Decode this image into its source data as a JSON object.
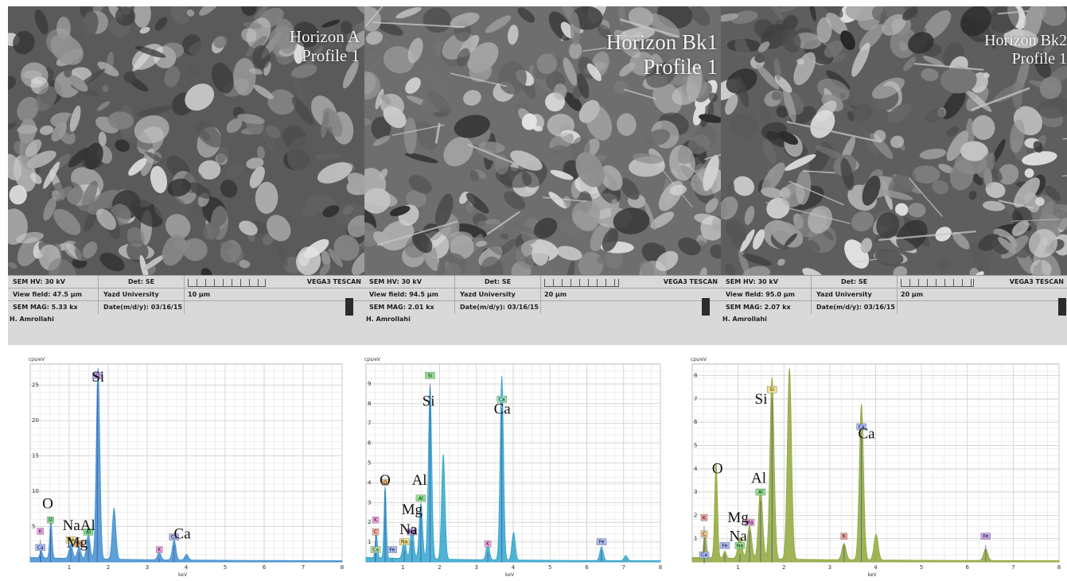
{
  "sem_images": [
    {
      "horizon": "Horizon A",
      "profile": "Profile 1",
      "hv": "SEM HV: 30 kV",
      "det": "Det: SE",
      "vendor": "VEGA3 TESCAN",
      "view_field": "View field: 47.5 µm",
      "institution": "Yazd University",
      "scale": "10 µm",
      "mag": "SEM MAG: 5.33 kx",
      "date": "Date(m/d/y): 03/16/15",
      "author": "H. Amrollahi"
    },
    {
      "horizon": "Horizon Bk1",
      "profile": "Profile 1",
      "hv": "SEM HV: 30 kV",
      "det": "Det: SE",
      "vendor": "VEGA3 TESCAN",
      "view_field": "View field: 94.5 µm",
      "institution": "Yazd University",
      "scale": "20 µm",
      "mag": "SEM MAG: 2.01 kx",
      "date": "Date(m/d/y): 03/16/15",
      "author": "H. Amrollahi"
    },
    {
      "horizon": "Horizon Bk2",
      "profile": "Profile 1",
      "hv": "SEM HV: 30 kV",
      "det": "Det: SE",
      "vendor": "VEGA3 TESCAN",
      "view_field": "View field: 95.0 µm",
      "institution": "Yazd University",
      "scale": "20 µm",
      "mag": "SEM MAG: 2.07 kx",
      "date": "Date(m/d/y): 03/16/15",
      "author": "H. Amrollahi"
    }
  ],
  "chart_data": [
    {
      "type": "area",
      "y_unit": "cps/eV",
      "x_unit": "keV",
      "xlim": [
        0,
        8
      ],
      "ylim": [
        0,
        28
      ],
      "x_ticks": [
        1,
        2,
        3,
        4,
        5,
        6,
        7,
        8
      ],
      "y_ticks": [
        5,
        10,
        15,
        20,
        25
      ],
      "color": "#3f8fd0",
      "peaks": [
        {
          "energy": 0.28,
          "height": 1.0
        },
        {
          "energy": 0.53,
          "height": 5.2
        },
        {
          "energy": 1.04,
          "height": 2.0
        },
        {
          "energy": 1.25,
          "height": 1.6
        },
        {
          "energy": 1.49,
          "height": 3.4
        },
        {
          "energy": 1.74,
          "height": 27.0
        },
        {
          "energy": 2.15,
          "height": 7.2
        },
        {
          "energy": 3.31,
          "height": 1.0
        },
        {
          "energy": 3.69,
          "height": 2.8
        },
        {
          "energy": 4.01,
          "height": 0.8
        }
      ],
      "element_labels": [
        {
          "text": "Si",
          "energy": 1.74,
          "level": 25.5
        },
        {
          "text": "O",
          "energy": 0.45,
          "level": 7.6
        },
        {
          "text": "NaAl",
          "energy": 1.25,
          "level": 4.5
        },
        {
          "text": "Mg",
          "energy": 1.2,
          "level": 2.1
        },
        {
          "text": "Ca",
          "energy": 3.9,
          "level": 3.3
        }
      ],
      "badges": [
        {
          "text": "Si",
          "energy": 1.72,
          "level": 26.0,
          "color": "#c9a2ee"
        },
        {
          "text": "O",
          "energy": 0.52,
          "level": 5.6,
          "color": "#7fe08d"
        },
        {
          "text": "K",
          "energy": 0.26,
          "level": 4.0,
          "color": "#f2a0e6"
        },
        {
          "text": "Ca",
          "energy": 0.26,
          "level": 1.7,
          "color": "#a9b9f2"
        },
        {
          "text": "Na",
          "energy": 1.04,
          "level": 2.8,
          "color": "#f4e38c"
        },
        {
          "text": "Al",
          "energy": 1.49,
          "level": 3.9,
          "color": "#7fe08d"
        },
        {
          "text": "Mg",
          "energy": 1.25,
          "level": 2.3,
          "color": "#f4c58c"
        },
        {
          "text": "K",
          "energy": 3.31,
          "level": 1.4,
          "color": "#f2a0e6"
        },
        {
          "text": "Ca",
          "energy": 3.69,
          "level": 3.2,
          "color": "#a9b9f2"
        }
      ]
    },
    {
      "type": "area",
      "y_unit": "cps/eV",
      "x_unit": "keV",
      "xlim": [
        0,
        8
      ],
      "ylim": [
        0,
        10
      ],
      "x_ticks": [
        1,
        2,
        3,
        4,
        5,
        6,
        7,
        8
      ],
      "y_ticks": [
        1,
        2,
        3,
        4,
        5,
        6,
        7,
        8,
        9
      ],
      "color": "#33a6cc",
      "peaks": [
        {
          "energy": 0.28,
          "height": 1.2
        },
        {
          "energy": 0.52,
          "height": 3.6
        },
        {
          "energy": 1.04,
          "height": 1.0
        },
        {
          "energy": 1.25,
          "height": 1.6
        },
        {
          "energy": 1.49,
          "height": 2.8
        },
        {
          "energy": 1.74,
          "height": 8.7
        },
        {
          "energy": 2.1,
          "height": 5.3
        },
        {
          "energy": 3.31,
          "height": 0.8
        },
        {
          "energy": 3.69,
          "height": 9.3
        },
        {
          "energy": 4.01,
          "height": 1.4
        },
        {
          "energy": 6.4,
          "height": 0.7
        },
        {
          "energy": 7.06,
          "height": 0.25
        }
      ],
      "element_labels": [
        {
          "text": "Si",
          "energy": 1.7,
          "level": 7.9
        },
        {
          "text": "Ca",
          "energy": 3.7,
          "level": 7.5
        },
        {
          "text": "O",
          "energy": 0.52,
          "level": 3.9
        },
        {
          "text": "Al",
          "energy": 1.45,
          "level": 3.9
        },
        {
          "text": "Mg",
          "energy": 1.25,
          "level": 2.4
        },
        {
          "text": "Na",
          "energy": 1.15,
          "level": 1.4
        }
      ],
      "badges": [
        {
          "text": "Si",
          "energy": 1.74,
          "level": 9.3,
          "color": "#8fe08f"
        },
        {
          "text": "Ca",
          "energy": 3.69,
          "level": 8.1,
          "color": "#8fe0c0"
        },
        {
          "text": "O",
          "energy": 0.52,
          "level": 3.9,
          "color": "#f6c48a"
        },
        {
          "text": "Al",
          "energy": 1.49,
          "level": 3.1,
          "color": "#8fe08f"
        },
        {
          "text": "K",
          "energy": 0.26,
          "level": 2.0,
          "color": "#f2a0e6"
        },
        {
          "text": "C",
          "energy": 0.26,
          "level": 1.4,
          "color": "#f6b0a0"
        },
        {
          "text": "Ca",
          "energy": 0.26,
          "level": 0.5,
          "color": "#b0e0a0"
        },
        {
          "text": "Fe",
          "energy": 0.71,
          "level": 0.5,
          "color": "#a9b9f2"
        },
        {
          "text": "Na",
          "energy": 1.04,
          "level": 0.9,
          "color": "#f4e38c"
        },
        {
          "text": "Mg",
          "energy": 1.25,
          "level": 1.4,
          "color": "#c9a2ee"
        },
        {
          "text": "K",
          "energy": 3.31,
          "level": 0.8,
          "color": "#f2a0e6"
        },
        {
          "text": "Fe",
          "energy": 6.4,
          "level": 0.9,
          "color": "#a9b9f2"
        }
      ]
    },
    {
      "type": "area",
      "y_unit": "cps/eV",
      "x_unit": "keV",
      "xlim": [
        0,
        8
      ],
      "ylim": [
        0,
        8.5
      ],
      "x_ticks": [
        1,
        2,
        3,
        4,
        5,
        6,
        7,
        8
      ],
      "y_ticks": [
        1,
        2,
        3,
        4,
        5,
        6,
        7,
        8
      ],
      "color": "#8fa83a",
      "peaks": [
        {
          "energy": 0.28,
          "height": 1.1
        },
        {
          "energy": 0.52,
          "height": 4.1
        },
        {
          "energy": 0.71,
          "height": 0.3
        },
        {
          "energy": 1.04,
          "height": 0.9
        },
        {
          "energy": 1.25,
          "height": 1.4
        },
        {
          "energy": 1.49,
          "height": 3.0
        },
        {
          "energy": 1.74,
          "height": 7.8
        },
        {
          "energy": 2.12,
          "height": 8.2
        },
        {
          "energy": 3.31,
          "height": 0.7
        },
        {
          "energy": 3.69,
          "height": 6.7
        },
        {
          "energy": 4.01,
          "height": 1.1
        },
        {
          "energy": 6.4,
          "height": 0.5
        }
      ],
      "element_labels": [
        {
          "text": "Si",
          "energy": 1.5,
          "level": 6.8
        },
        {
          "text": "Ca",
          "energy": 3.8,
          "level": 5.3
        },
        {
          "text": "O",
          "energy": 0.55,
          "level": 3.8
        },
        {
          "text": "Al",
          "energy": 1.45,
          "level": 3.4
        },
        {
          "text": "Mg",
          "energy": 1.0,
          "level": 1.7
        },
        {
          "text": "Na",
          "energy": 1.0,
          "level": 0.9
        }
      ],
      "badges": [
        {
          "text": "Si",
          "energy": 1.74,
          "level": 7.3,
          "color": "#f4e38c"
        },
        {
          "text": "Ca",
          "energy": 3.69,
          "level": 5.7,
          "color": "#a9b9f2"
        },
        {
          "text": "Al",
          "energy": 1.49,
          "level": 2.9,
          "color": "#8fe08f"
        },
        {
          "text": "K",
          "energy": 0.26,
          "level": 1.8,
          "color": "#f2a0a0"
        },
        {
          "text": "C",
          "energy": 0.26,
          "level": 1.1,
          "color": "#f6c48a"
        },
        {
          "text": "Ca",
          "energy": 0.26,
          "level": 0.2,
          "color": "#a9b9f2"
        },
        {
          "text": "Fe",
          "energy": 0.71,
          "level": 0.6,
          "color": "#a9b9f2"
        },
        {
          "text": "Na",
          "energy": 1.04,
          "level": 0.6,
          "color": "#8fe08f"
        },
        {
          "text": "Mg",
          "energy": 1.25,
          "level": 1.6,
          "color": "#f2a0e6"
        },
        {
          "text": "K",
          "energy": 3.31,
          "level": 1.0,
          "color": "#f2a0a0"
        },
        {
          "text": "Fe",
          "energy": 6.4,
          "level": 1.0,
          "color": "#c9a2ee"
        }
      ]
    }
  ]
}
